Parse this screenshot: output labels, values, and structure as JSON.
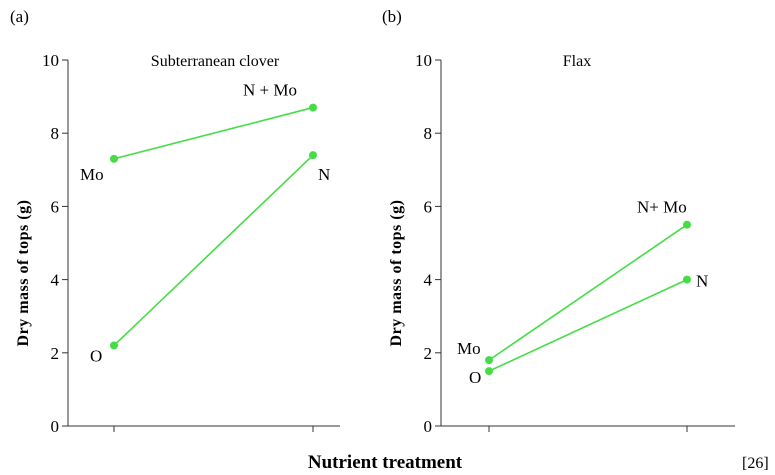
{
  "shared_xlabel": "Nutrient treatment",
  "reference": "[26]",
  "colors": {
    "line": "#44dd44",
    "axis": "#333333",
    "text": "#111111"
  },
  "chart_data": [
    {
      "type": "line",
      "panel": "(a)",
      "title": "Subterranean clover",
      "ylabel": "Dry mass of tops  (g)",
      "xlabel": "Nutrient treatment",
      "ylim": [
        0,
        10
      ],
      "yticks": [
        0,
        2,
        4,
        6,
        8,
        10
      ],
      "grid": false,
      "series": [
        {
          "points": [
            {
              "label": "Mo",
              "y": 7.3
            },
            {
              "label": "N + Mo",
              "y": 8.7
            }
          ]
        },
        {
          "points": [
            {
              "label": "O",
              "y": 2.2
            },
            {
              "label": "N",
              "y": 7.4
            }
          ]
        }
      ]
    },
    {
      "type": "line",
      "panel": "(b)",
      "title": "Flax",
      "ylabel": "Dry mass of tops  (g)",
      "xlabel": "Nutrient treatment",
      "ylim": [
        0,
        10
      ],
      "yticks": [
        0,
        2,
        4,
        6,
        8,
        10
      ],
      "grid": false,
      "series": [
        {
          "points": [
            {
              "label": "Mo",
              "y": 1.8
            },
            {
              "label": "N+ Mo",
              "y": 5.5
            }
          ]
        },
        {
          "points": [
            {
              "label": "O",
              "y": 1.5
            },
            {
              "label": "N",
              "y": 4.0
            }
          ]
        }
      ]
    }
  ]
}
